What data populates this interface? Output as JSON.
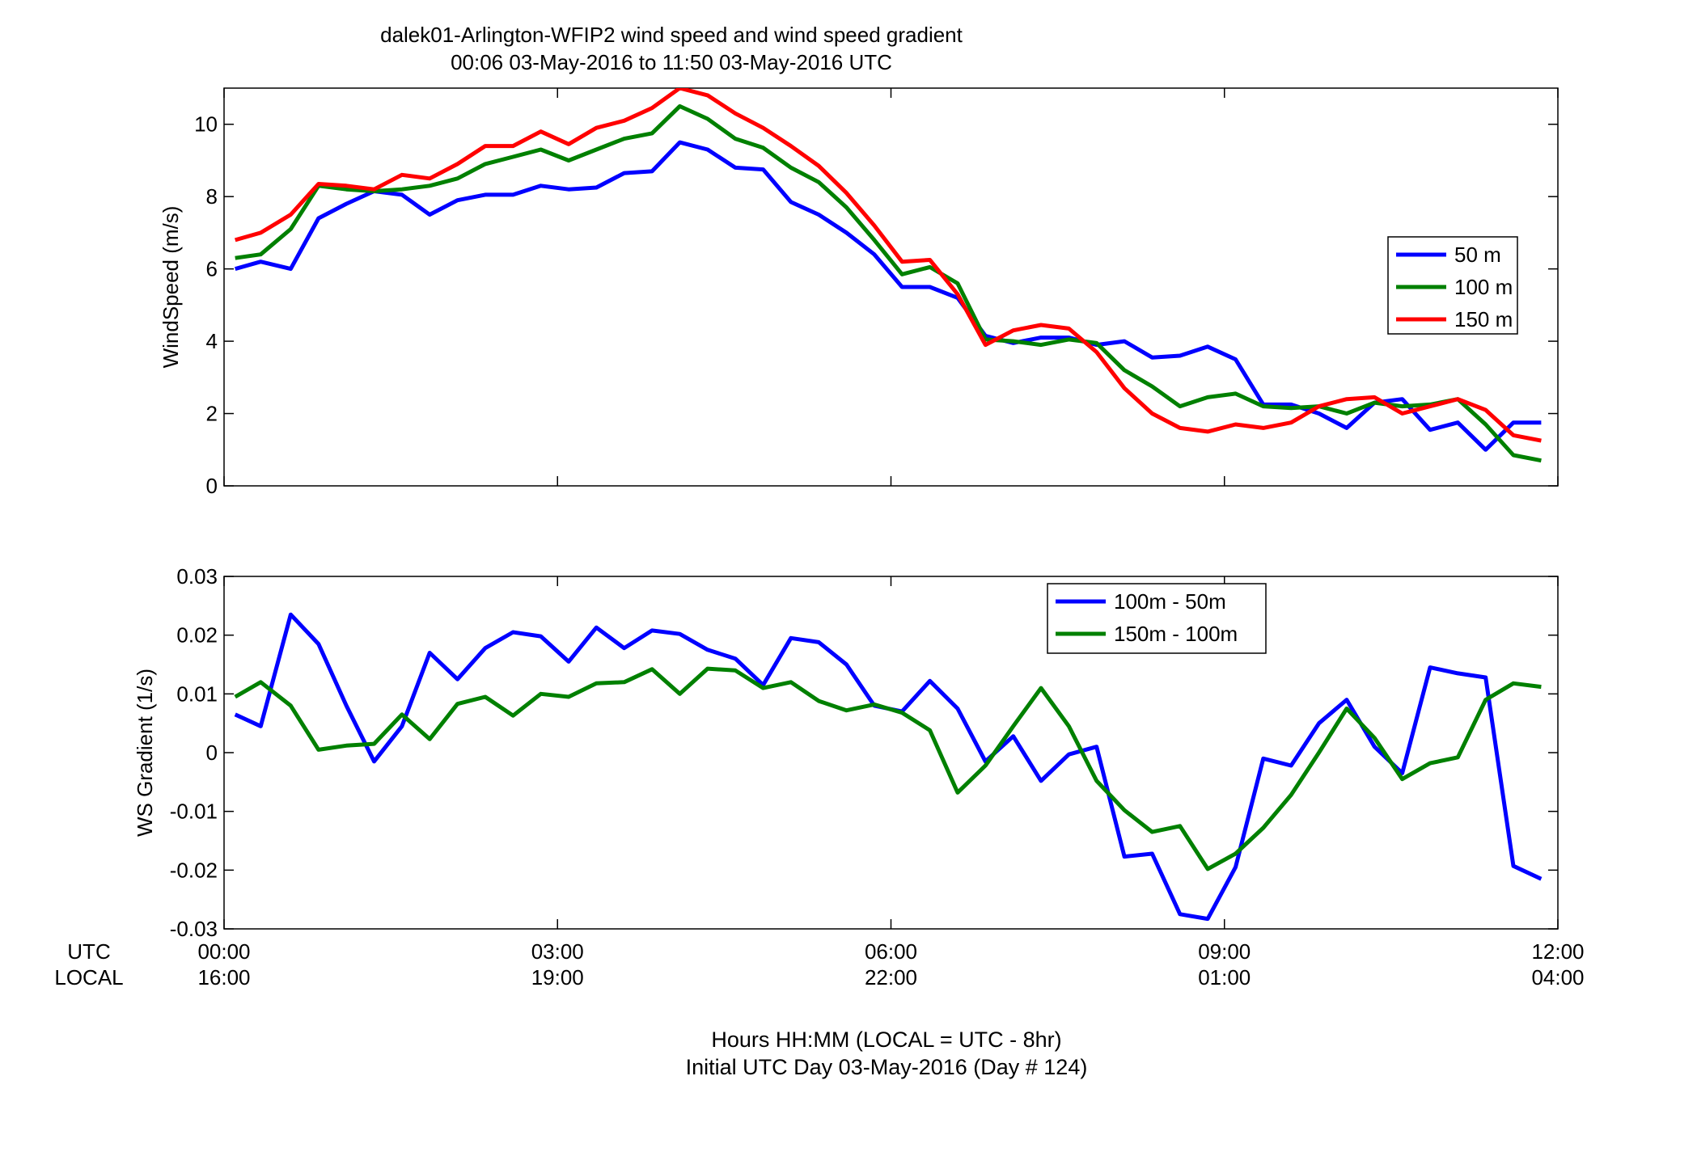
{
  "title_line1": "dalek01-Arlington-WFIP2  wind speed and wind speed gradient",
  "title_line2": "00:06 03-May-2016 to 11:50 03-May-2016  UTC",
  "row_label_utc": "UTC",
  "row_label_local": "LOCAL",
  "xaxis": {
    "utc_ticks": [
      "00:00",
      "03:00",
      "06:00",
      "09:00",
      "12:00"
    ],
    "local_ticks": [
      "16:00",
      "19:00",
      "22:00",
      "01:00",
      "04:00"
    ],
    "tick_hours": [
      0,
      3,
      6,
      9,
      12
    ],
    "range_hours": [
      0,
      12
    ]
  },
  "footer_line1": "Hours HH:MM  (LOCAL = UTC - 8hr)",
  "footer_line2": "Initial UTC Day 03-May-2016 (Day # 124)",
  "chart_data": [
    {
      "type": "line",
      "ylabel": "WindSpeed (m/s)",
      "ylim": [
        0,
        11
      ],
      "yticks": [
        0,
        2,
        4,
        6,
        8,
        10
      ],
      "ytick_labels": [
        "0",
        "2",
        "4",
        "6",
        "8",
        "10"
      ],
      "legend_position": "right",
      "x_hours": [
        0.1,
        0.33,
        0.6,
        0.85,
        1.1,
        1.35,
        1.6,
        1.85,
        2.1,
        2.35,
        2.6,
        2.85,
        3.1,
        3.35,
        3.6,
        3.85,
        4.1,
        4.35,
        4.6,
        4.85,
        5.1,
        5.35,
        5.6,
        5.85,
        6.1,
        6.35,
        6.6,
        6.85,
        7.1,
        7.35,
        7.6,
        7.85,
        8.1,
        8.35,
        8.6,
        8.85,
        9.1,
        9.35,
        9.6,
        9.85,
        10.1,
        10.35,
        10.6,
        10.85,
        11.1,
        11.35,
        11.6,
        11.85
      ],
      "series": [
        {
          "name": "50 m",
          "color": "#0000ff",
          "values": [
            6.0,
            6.2,
            6.0,
            7.4,
            7.8,
            8.15,
            8.05,
            7.5,
            7.9,
            8.05,
            8.05,
            8.3,
            8.2,
            8.25,
            8.65,
            8.7,
            9.5,
            9.3,
            8.8,
            8.75,
            7.85,
            7.5,
            7.0,
            6.4,
            5.5,
            5.5,
            5.2,
            4.15,
            3.95,
            4.1,
            4.1,
            3.9,
            4.0,
            3.55,
            3.6,
            3.85,
            3.5,
            2.25,
            2.25,
            2.0,
            1.6,
            2.3,
            2.4,
            1.55,
            1.75,
            1.0,
            1.75,
            1.75
          ]
        },
        {
          "name": "100 m",
          "color": "#008000",
          "values": [
            6.3,
            6.4,
            7.1,
            8.3,
            8.2,
            8.15,
            8.2,
            8.3,
            8.5,
            8.9,
            9.1,
            9.3,
            9.0,
            9.3,
            9.6,
            9.75,
            10.5,
            10.15,
            9.6,
            9.35,
            8.8,
            8.4,
            7.7,
            6.8,
            5.85,
            6.05,
            5.6,
            4.05,
            4.0,
            3.9,
            4.05,
            3.95,
            3.2,
            2.75,
            2.2,
            2.45,
            2.55,
            2.2,
            2.15,
            2.2,
            2.0,
            2.3,
            2.2,
            2.25,
            2.4,
            1.7,
            0.85,
            0.7
          ]
        },
        {
          "name": "150 m",
          "color": "#ff0000",
          "values": [
            6.8,
            7.0,
            7.5,
            8.35,
            8.3,
            8.2,
            8.6,
            8.5,
            8.9,
            9.4,
            9.4,
            9.8,
            9.45,
            9.9,
            10.1,
            10.45,
            11.0,
            10.8,
            10.3,
            9.9,
            9.4,
            8.85,
            8.1,
            7.2,
            6.2,
            6.25,
            5.3,
            3.9,
            4.3,
            4.45,
            4.35,
            3.7,
            2.7,
            2.0,
            1.6,
            1.5,
            1.7,
            1.6,
            1.75,
            2.2,
            2.4,
            2.45,
            2.0,
            2.2,
            2.4,
            2.1,
            1.4,
            1.25
          ]
        }
      ]
    },
    {
      "type": "line",
      "ylabel": "WS Gradient (1/s)",
      "ylim": [
        -0.03,
        0.03
      ],
      "yticks": [
        -0.03,
        -0.02,
        -0.01,
        0,
        0.01,
        0.02,
        0.03
      ],
      "ytick_labels": [
        "-0.03",
        "-0.02",
        "-0.01",
        "0",
        "0.01",
        "0.02",
        "0.03"
      ],
      "legend_position": "top-right",
      "x_hours": [
        0.1,
        0.33,
        0.6,
        0.85,
        1.1,
        1.35,
        1.6,
        1.85,
        2.1,
        2.35,
        2.6,
        2.85,
        3.1,
        3.35,
        3.6,
        3.85,
        4.1,
        4.35,
        4.6,
        4.85,
        5.1,
        5.35,
        5.6,
        5.85,
        6.1,
        6.35,
        6.6,
        6.85,
        7.1,
        7.35,
        7.6,
        7.85,
        8.1,
        8.35,
        8.6,
        8.85,
        9.1,
        9.35,
        9.6,
        9.85,
        10.1,
        10.35,
        10.6,
        10.85,
        11.1,
        11.35,
        11.6,
        11.85
      ],
      "series": [
        {
          "name": "100m - 50m",
          "color": "#0000ff",
          "values": [
            0.0065,
            0.0045,
            0.0235,
            0.0185,
            0.008,
            -0.0015,
            0.0045,
            0.017,
            0.0125,
            0.0178,
            0.0205,
            0.0198,
            0.0155,
            0.0213,
            0.0178,
            0.0208,
            0.0202,
            0.0175,
            0.016,
            0.0115,
            0.0195,
            0.0188,
            0.015,
            0.008,
            0.007,
            0.0122,
            0.0075,
            -0.0015,
            0.0028,
            -0.0048,
            -0.0003,
            0.001,
            -0.0177,
            -0.0172,
            -0.0275,
            -0.0283,
            -0.0195,
            -0.001,
            -0.0022,
            0.005,
            0.009,
            0.001,
            -0.0035,
            0.0145,
            0.0135,
            0.0128,
            -0.0193,
            -0.0215
          ]
        },
        {
          "name": "150m - 100m",
          "color": "#008000",
          "values": [
            0.0095,
            0.012,
            0.008,
            0.0005,
            0.0012,
            0.0015,
            0.0065,
            0.0023,
            0.0083,
            0.0095,
            0.0063,
            0.01,
            0.0095,
            0.0118,
            0.012,
            0.0142,
            0.01,
            0.0143,
            0.014,
            0.011,
            0.012,
            0.0088,
            0.0072,
            0.0082,
            0.0068,
            0.0038,
            -0.0068,
            -0.0022,
            0.0045,
            0.011,
            0.0045,
            -0.0048,
            -0.0098,
            -0.0135,
            -0.0125,
            -0.0198,
            -0.0172,
            -0.0128,
            -0.0072,
            0.0,
            0.0075,
            0.0025,
            -0.0045,
            -0.0018,
            -0.0008,
            0.009,
            0.0118,
            0.0112
          ]
        }
      ]
    }
  ]
}
